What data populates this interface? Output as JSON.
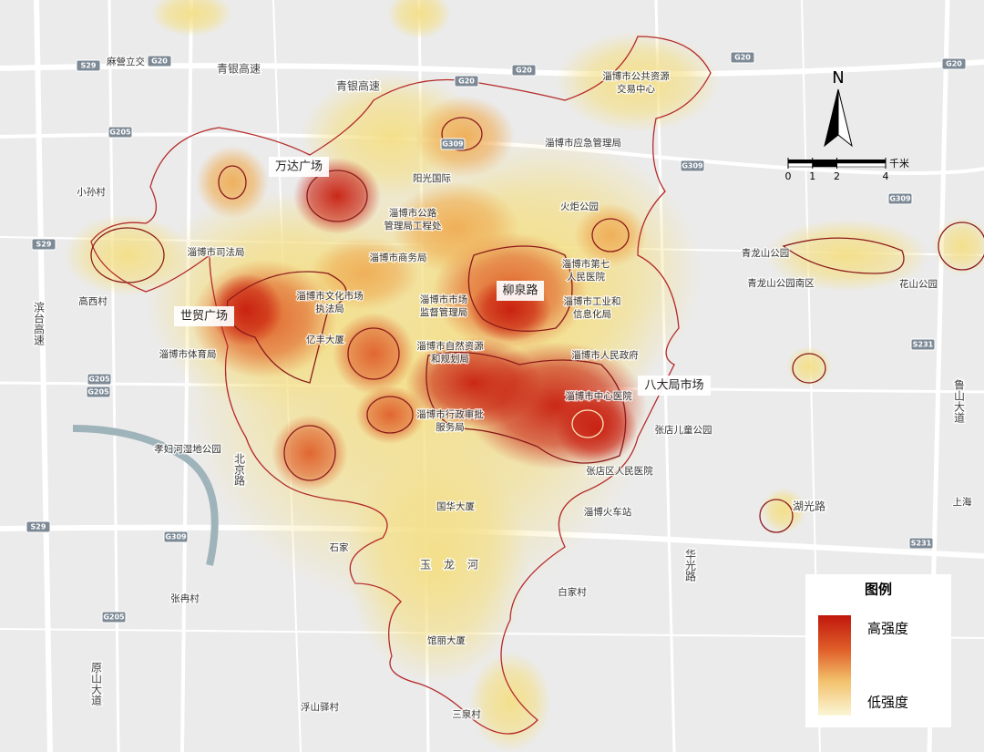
{
  "north": "N",
  "scale_bar": {
    "ticks": [
      0,
      1,
      2,
      4
    ],
    "unit": "千米"
  },
  "legend": {
    "title": "图例",
    "high": "高强度",
    "low": "低强度"
  },
  "area_labels": [
    "万达广场",
    "世贸广场",
    "柳泉路",
    "八大局市场"
  ],
  "places": [
    {
      "lines": [
        "麻營立交"
      ]
    },
    {
      "lines": [
        "小孙村"
      ]
    },
    {
      "lines": [
        "高西村"
      ]
    },
    {
      "lines": [
        "淄博市公共资源",
        "交易中心"
      ]
    },
    {
      "lines": [
        "淄博市应急管理局"
      ]
    },
    {
      "lines": [
        "阳光国际"
      ]
    },
    {
      "lines": [
        "淄博市公路",
        "管理局工程处"
      ]
    },
    {
      "lines": [
        "火炬公园"
      ]
    },
    {
      "lines": [
        "淄博市司法局"
      ]
    },
    {
      "lines": [
        "淄博市商务局"
      ]
    },
    {
      "lines": [
        "淄博市第七",
        "人民医院"
      ]
    },
    {
      "lines": [
        "淄博市文化市场",
        "执法局"
      ]
    },
    {
      "lines": [
        "淄博市市场",
        "监督管理局"
      ]
    },
    {
      "lines": [
        "淄博市工业和",
        "信息化局"
      ]
    },
    {
      "lines": [
        "亿丰大厦"
      ]
    },
    {
      "lines": [
        "淄博市自然资源",
        "和规划局"
      ]
    },
    {
      "lines": [
        "淄博市人民政府"
      ]
    },
    {
      "lines": [
        "淄博市体育局"
      ]
    },
    {
      "lines": [
        "淄博市中心医院"
      ]
    },
    {
      "lines": [
        "淄博市行政审批",
        "服务局"
      ]
    },
    {
      "lines": [
        "张店儿童公园"
      ]
    },
    {
      "lines": [
        "孝妇河湿地公园"
      ]
    },
    {
      "lines": [
        "张店区人民医院"
      ]
    },
    {
      "lines": [
        "国华大厦"
      ]
    },
    {
      "lines": [
        "淄博火车站"
      ]
    },
    {
      "lines": [
        "青龙山公园"
      ]
    },
    {
      "lines": [
        "青龙山公园南区"
      ]
    },
    {
      "lines": [
        "花山公园"
      ]
    },
    {
      "lines": [
        "石家"
      ]
    },
    {
      "lines": [
        "白家村"
      ]
    },
    {
      "lines": [
        "张冉村"
      ]
    },
    {
      "lines": [
        "馆丽大厦"
      ]
    },
    {
      "lines": [
        "浮山驿村"
      ]
    },
    {
      "lines": [
        "三泉村"
      ]
    },
    {
      "lines": [
        "上海"
      ]
    }
  ],
  "road_names": [
    "青银高速",
    "青银高速",
    "湖光路",
    "玉龙河",
    "滨台高速",
    "北京路",
    "鲁山大道",
    "原山大道",
    "华光路"
  ],
  "shields": [
    "S29",
    "G20",
    "G20",
    "G20",
    "G20",
    "G20",
    "G205",
    "G309",
    "G309",
    "G309",
    "S29",
    "G205",
    "G205",
    "S231",
    "S29",
    "G309",
    "S231",
    "G205"
  ]
}
